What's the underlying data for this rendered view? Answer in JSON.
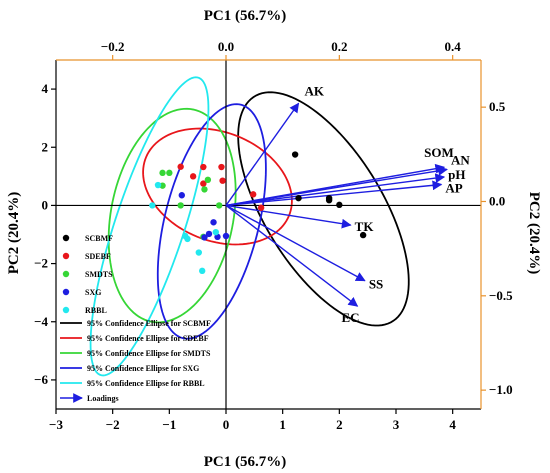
{
  "chart_data": {
    "type": "scatter",
    "subtype": "pca-biplot",
    "xlabel": "PC1 (56.7%)",
    "ylabel": "PC2 (20.4%)",
    "top_xlabel": "PC1 (56.7%)",
    "right_ylabel": "PC2 (20.4%)",
    "xlim": [
      -3,
      4.5
    ],
    "ylim": [
      -7.0,
      5.0
    ],
    "x_ticks": [
      -3,
      -2,
      -1,
      0,
      1,
      2,
      3,
      4
    ],
    "y_ticks": [
      -6,
      -4,
      -2,
      0,
      2,
      4
    ],
    "top_xlim": [
      -0.3,
      0.45
    ],
    "top_x_ticks": [
      -0.2,
      0.0,
      0.2,
      0.4
    ],
    "top_x_tick_labels": [
      "−0.2",
      "0.0",
      "0.2",
      "0.4"
    ],
    "right_ylim": [
      -1.1,
      0.75
    ],
    "right_y_ticks": [
      0.5,
      0.0,
      -0.5,
      -1.0
    ],
    "right_y_tick_labels": [
      "0.5",
      "0.0",
      "−0.5",
      "−1.0"
    ],
    "x_tick_labels": [
      "−3",
      "−2",
      "−1",
      "0",
      "1",
      "2",
      "3",
      "4"
    ],
    "y_tick_labels": [
      "−6",
      "−4",
      "−2",
      "0",
      "2",
      "4"
    ],
    "secondary_axis_color": "#e8922c",
    "grid": false,
    "legend_position": "lower-left inside",
    "series": [
      {
        "name": "SCBMF",
        "color": "#000000",
        "points": [
          [
            1.22,
            1.75
          ],
          [
            1.28,
            0.25
          ],
          [
            1.82,
            0.25
          ],
          [
            1.82,
            0.18
          ],
          [
            2.0,
            0.02
          ],
          [
            2.42,
            -1.02
          ]
        ]
      },
      {
        "name": "SDEBF",
        "color": "#e8161b",
        "points": [
          [
            -0.8,
            1.33
          ],
          [
            -0.58,
            1.0
          ],
          [
            -0.4,
            1.32
          ],
          [
            -0.4,
            0.75
          ],
          [
            -0.08,
            1.32
          ],
          [
            -0.06,
            0.85
          ],
          [
            0.48,
            0.38
          ],
          [
            0.62,
            -0.08
          ]
        ]
      },
      {
        "name": "SMDTS",
        "color": "#36d636",
        "points": [
          [
            -1.12,
            1.12
          ],
          [
            -1.0,
            1.12
          ],
          [
            -0.38,
            0.55
          ],
          [
            -0.32,
            0.88
          ],
          [
            -1.12,
            0.68
          ],
          [
            -0.8,
            0.0
          ],
          [
            -0.4,
            -1.08
          ],
          [
            -0.12,
            0.0
          ]
        ]
      },
      {
        "name": "SXG",
        "color": "#1e1ee0",
        "points": [
          [
            -0.78,
            0.35
          ],
          [
            -0.3,
            -0.98
          ],
          [
            -0.38,
            -1.1
          ],
          [
            -0.22,
            -0.58
          ],
          [
            -0.15,
            -1.08
          ],
          [
            0.0,
            -1.05
          ]
        ]
      },
      {
        "name": "RBBL",
        "color": "#22e8ee",
        "points": [
          [
            -1.3,
            0.0
          ],
          [
            -1.2,
            0.7
          ],
          [
            -0.72,
            -1.05
          ],
          [
            -0.68,
            -1.15
          ],
          [
            -0.48,
            -1.62
          ],
          [
            -0.42,
            -2.25
          ],
          [
            -0.18,
            -0.92
          ]
        ]
      }
    ],
    "ellipses": [
      {
        "name": "95% Confidence Ellipse for SCBMF",
        "color": "#000000",
        "cx": 1.72,
        "cy": -0.12,
        "rx": 1.75,
        "ry": 4.35,
        "rotation_deg": 25
      },
      {
        "name": "95% Confidence Ellipse for SDEBF",
        "color": "#e8161b",
        "cx": -0.15,
        "cy": 0.65,
        "rx": 1.78,
        "ry": 2.3,
        "rotation_deg": 52
      },
      {
        "name": "95% Confidence Ellipse for SMDTS",
        "color": "#36d636",
        "cx": -0.95,
        "cy": -0.35,
        "rx": 1.75,
        "ry": 3.7,
        "rotation_deg": -8
      },
      {
        "name": "95% Confidence Ellipse for SXG",
        "color": "#1e1ee0",
        "cx": -0.25,
        "cy": -0.55,
        "rx": 1.35,
        "ry": 4.1,
        "rotation_deg": -11
      },
      {
        "name": "95% Confidence Ellipse for RBBL",
        "color": "#22e8ee",
        "cx": -1.35,
        "cy": -0.72,
        "rx": 1.0,
        "ry": 5.3,
        "rotation_deg": -15
      }
    ],
    "loadings": {
      "name": "Loadings",
      "color": "#1e1ee0",
      "vectors": [
        {
          "label": "AK",
          "x": 0.128,
          "y": 0.52
        },
        {
          "label": "SOM",
          "x": 0.385,
          "y": 0.182
        },
        {
          "label": "AN",
          "x": 0.39,
          "y": 0.17
        },
        {
          "label": "pH",
          "x": 0.385,
          "y": 0.13
        },
        {
          "label": "AP",
          "x": 0.38,
          "y": 0.09
        },
        {
          "label": "TK",
          "x": 0.22,
          "y": -0.125
        },
        {
          "label": "SS",
          "x": 0.245,
          "y": -0.42
        },
        {
          "label": "EC",
          "x": 0.232,
          "y": -0.555
        }
      ]
    }
  }
}
